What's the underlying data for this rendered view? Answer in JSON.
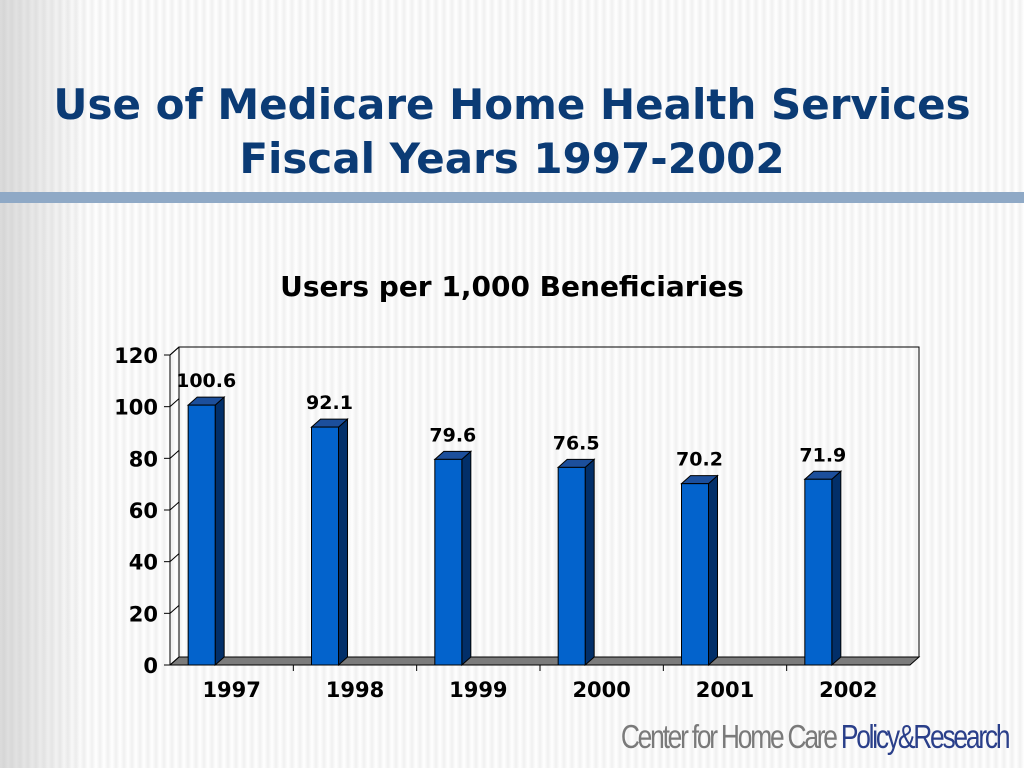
{
  "slide": {
    "title_line1": "Use of Medicare Home Health Services",
    "title_line2": "Fiscal Years 1997-2002"
  },
  "logo": {
    "part1": "Center for Home Care ",
    "part2": "Policy&Research"
  },
  "colors": {
    "title": "#0b3b75",
    "rule": "#8fa9c6",
    "bar_front": "#0363cc",
    "bar_side": "#022f69",
    "bar_top": "#1c4f9c",
    "floor": "#7b7b7b"
  },
  "chart_data": {
    "type": "bar",
    "title": "Users per 1,000 Beneficiaries",
    "categories": [
      "1997",
      "1998",
      "1999",
      "2000",
      "2001",
      "2002"
    ],
    "values": [
      100.6,
      92.1,
      79.6,
      76.5,
      70.2,
      71.9
    ],
    "data_labels": [
      "100.6",
      "92.1",
      "79.6",
      "76.5",
      "70.2",
      "71.9"
    ],
    "ylim": [
      0,
      120
    ],
    "yticks": [
      0,
      20,
      40,
      60,
      80,
      100,
      120
    ],
    "grid": false,
    "legend": "none",
    "style": "3d-column"
  }
}
